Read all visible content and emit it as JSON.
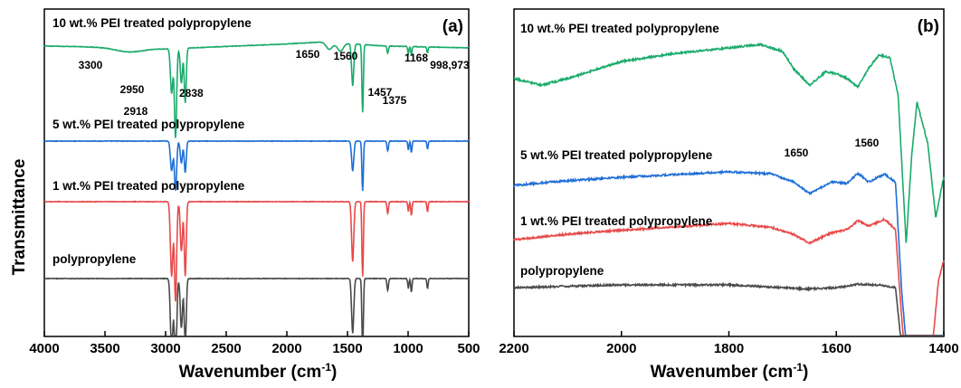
{
  "y_axis_label": "Transmittance",
  "chart_data": [
    {
      "type": "line",
      "panel_label": "(a)",
      "xlabel": "Wavenumber (cm",
      "xlabel_sup": "-1",
      "xlabel_end": ")",
      "ylabel": "Transmittance",
      "xlim": [
        4000,
        500
      ],
      "x_reversed": true,
      "xticks": [
        4000,
        3500,
        3000,
        2500,
        2000,
        1500,
        1000,
        500
      ],
      "xtick_labels": [
        "4000",
        "3500",
        "3000",
        "2500",
        "2000",
        "1500",
        "1000",
        "500"
      ],
      "y_ticks_shown": false,
      "series": [
        {
          "name": "10 wt.% PEI treated polypropylene",
          "color": "#1aab6a",
          "offset": 3,
          "baseline": [
            [
              4000,
              0.02
            ],
            [
              3300,
              0.0
            ],
            [
              3000,
              -0.01
            ],
            [
              2000,
              0.04
            ],
            [
              1700,
              0.06
            ],
            [
              1200,
              0.02
            ],
            [
              500,
              0.0
            ]
          ],
          "peaks": [
            {
              "x": 3300,
              "depth": 0.04,
              "width": 110
            },
            {
              "x": 2950,
              "depth": 0.45,
              "width": 10
            },
            {
              "x": 2918,
              "depth": 0.9,
              "width": 9
            },
            {
              "x": 2870,
              "depth": 0.35,
              "width": 9
            },
            {
              "x": 2838,
              "depth": 0.55,
              "width": 8
            },
            {
              "x": 1650,
              "depth": 0.07,
              "width": 25
            },
            {
              "x": 1560,
              "depth": 0.08,
              "width": 25
            },
            {
              "x": 1457,
              "depth": 0.42,
              "width": 9
            },
            {
              "x": 1375,
              "depth": 0.68,
              "width": 6
            },
            {
              "x": 1168,
              "depth": 0.07,
              "width": 6
            },
            {
              "x": 998,
              "depth": 0.07,
              "width": 5
            },
            {
              "x": 973,
              "depth": 0.08,
              "width": 5
            },
            {
              "x": 840,
              "depth": 0.06,
              "width": 5
            }
          ]
        },
        {
          "name": "5 wt.% PEI treated polypropylene",
          "color": "#1f6fd6",
          "offset": 2,
          "baseline": [
            [
              4000,
              0.0
            ],
            [
              500,
              0.0
            ]
          ],
          "peaks": [
            {
              "x": 2950,
              "depth": 0.3,
              "width": 10
            },
            {
              "x": 2918,
              "depth": 0.5,
              "width": 9
            },
            {
              "x": 2870,
              "depth": 0.22,
              "width": 9
            },
            {
              "x": 2838,
              "depth": 0.32,
              "width": 8
            },
            {
              "x": 1457,
              "depth": 0.3,
              "width": 9
            },
            {
              "x": 1375,
              "depth": 0.5,
              "width": 6
            },
            {
              "x": 1168,
              "depth": 0.1,
              "width": 6
            },
            {
              "x": 998,
              "depth": 0.09,
              "width": 5
            },
            {
              "x": 973,
              "depth": 0.12,
              "width": 5
            },
            {
              "x": 840,
              "depth": 0.08,
              "width": 5
            }
          ]
        },
        {
          "name": "1 wt.% PEI treated polypropylene",
          "color": "#e84a4a",
          "offset": 1,
          "baseline": [
            [
              4000,
              0.0
            ],
            [
              500,
              0.0
            ]
          ],
          "peaks": [
            {
              "x": 2950,
              "depth": 0.75,
              "width": 10
            },
            {
              "x": 2918,
              "depth": 1.0,
              "width": 9
            },
            {
              "x": 2870,
              "depth": 0.5,
              "width": 9
            },
            {
              "x": 2838,
              "depth": 0.75,
              "width": 8
            },
            {
              "x": 1457,
              "depth": 0.6,
              "width": 9
            },
            {
              "x": 1375,
              "depth": 0.75,
              "width": 6
            },
            {
              "x": 1168,
              "depth": 0.12,
              "width": 6
            },
            {
              "x": 998,
              "depth": 0.1,
              "width": 5
            },
            {
              "x": 973,
              "depth": 0.14,
              "width": 5
            },
            {
              "x": 840,
              "depth": 0.1,
              "width": 5
            }
          ]
        },
        {
          "name": "polypropylene",
          "color": "#4a4a4a",
          "offset": 0,
          "baseline": [
            [
              4000,
              0.0
            ],
            [
              500,
              0.0
            ]
          ],
          "peaks": [
            {
              "x": 2950,
              "depth": 0.75,
              "width": 10
            },
            {
              "x": 2918,
              "depth": 1.0,
              "width": 9
            },
            {
              "x": 2870,
              "depth": 0.5,
              "width": 9
            },
            {
              "x": 2838,
              "depth": 0.7,
              "width": 8
            },
            {
              "x": 1457,
              "depth": 0.55,
              "width": 9
            },
            {
              "x": 1375,
              "depth": 0.75,
              "width": 6
            },
            {
              "x": 1168,
              "depth": 0.12,
              "width": 6
            },
            {
              "x": 998,
              "depth": 0.1,
              "width": 5
            },
            {
              "x": 973,
              "depth": 0.14,
              "width": 5
            },
            {
              "x": 840,
              "depth": 0.1,
              "width": 5
            }
          ]
        }
      ],
      "annotations": [
        {
          "text": "3300",
          "x": 3300
        },
        {
          "text": "2950",
          "x": 2950
        },
        {
          "text": "2918",
          "x": 2918
        },
        {
          "text": "2838",
          "x": 2838
        },
        {
          "text": "1650",
          "x": 1650
        },
        {
          "text": "1560",
          "x": 1560
        },
        {
          "text": "1457",
          "x": 1457
        },
        {
          "text": "1375",
          "x": 1375
        },
        {
          "text": "1168",
          "x": 1168
        },
        {
          "text": "998,973",
          "x": 985
        }
      ]
    },
    {
      "type": "line",
      "panel_label": "(b)",
      "xlabel": "Wavenumber (cm",
      "xlabel_sup": "-1",
      "xlabel_end": ")",
      "xlim": [
        2200,
        1400
      ],
      "x_reversed": true,
      "xticks": [
        2200,
        2000,
        1800,
        1600,
        1400
      ],
      "xtick_labels": [
        "2200",
        "2000",
        "1800",
        "1600",
        "1400"
      ],
      "y_ticks_shown": false,
      "series": [
        {
          "name": "10 wt.% PEI treated polypropylene",
          "color": "#1aab6a",
          "offset": 3,
          "baseline": [
            [
              2200,
              0.55
            ],
            [
              2150,
              0.45
            ],
            [
              2100,
              0.55
            ],
            [
              2000,
              0.8
            ],
            [
              1900,
              0.92
            ],
            [
              1800,
              1.0
            ],
            [
              1740,
              1.05
            ],
            [
              1700,
              0.95
            ],
            [
              1680,
              0.7
            ],
            [
              1650,
              0.45
            ],
            [
              1620,
              0.65
            ],
            [
              1600,
              0.62
            ],
            [
              1580,
              0.55
            ],
            [
              1560,
              0.42
            ],
            [
              1540,
              0.7
            ],
            [
              1520,
              0.9
            ],
            [
              1500,
              0.85
            ],
            [
              1485,
              0.3
            ],
            [
              1470,
              -1.9
            ],
            [
              1460,
              -0.6
            ],
            [
              1450,
              0.2
            ],
            [
              1430,
              -0.4
            ],
            [
              1415,
              -1.5
            ],
            [
              1400,
              -0.9
            ]
          ]
        },
        {
          "name": "5 wt.% PEI treated polypropylene",
          "color": "#1f6fd6",
          "offset": 2,
          "baseline": [
            [
              2200,
              0.0
            ],
            [
              2100,
              0.07
            ],
            [
              2000,
              0.12
            ],
            [
              1800,
              0.2
            ],
            [
              1720,
              0.17
            ],
            [
              1680,
              0.05
            ],
            [
              1650,
              -0.12
            ],
            [
              1610,
              0.05
            ],
            [
              1580,
              0.03
            ],
            [
              1560,
              0.18
            ],
            [
              1540,
              0.05
            ],
            [
              1510,
              0.17
            ],
            [
              1490,
              0.05
            ],
            [
              1478,
              -1.6
            ],
            [
              1465,
              -2.8
            ],
            [
              1450,
              -2.8
            ],
            [
              1442,
              -2.8
            ],
            [
              1430,
              -2.8
            ],
            [
              1415,
              -2.8
            ],
            [
              1400,
              -2.8
            ]
          ]
        },
        {
          "name": "1 wt.% PEI treated polypropylene",
          "color": "#e84a4a",
          "offset": 1,
          "baseline": [
            [
              2200,
              0.0
            ],
            [
              2100,
              0.08
            ],
            [
              2000,
              0.14
            ],
            [
              1800,
              0.24
            ],
            [
              1720,
              0.18
            ],
            [
              1680,
              0.08
            ],
            [
              1650,
              -0.05
            ],
            [
              1610,
              0.1
            ],
            [
              1580,
              0.15
            ],
            [
              1560,
              0.28
            ],
            [
              1540,
              0.2
            ],
            [
              1510,
              0.3
            ],
            [
              1490,
              0.15
            ],
            [
              1478,
              -1.2
            ],
            [
              1470,
              -1.9
            ],
            [
              1460,
              -1.9
            ],
            [
              1440,
              -1.9
            ],
            [
              1425,
              -1.9
            ],
            [
              1410,
              -0.6
            ],
            [
              1400,
              -0.3
            ]
          ]
        },
        {
          "name": "polypropylene",
          "color": "#4a4a4a",
          "offset": 0,
          "baseline": [
            [
              2200,
              0.0
            ],
            [
              2100,
              0.02
            ],
            [
              2000,
              0.04
            ],
            [
              1800,
              0.04
            ],
            [
              1700,
              0.0
            ],
            [
              1650,
              -0.02
            ],
            [
              1600,
              0.0
            ],
            [
              1560,
              0.05
            ],
            [
              1520,
              0.04
            ],
            [
              1490,
              0.0
            ],
            [
              1478,
              -0.9
            ],
            [
              1470,
              -0.9
            ],
            [
              1460,
              -0.9
            ],
            [
              1440,
              -0.9
            ],
            [
              1420,
              -0.9
            ],
            [
              1400,
              -0.9
            ]
          ]
        }
      ],
      "annotations": [
        {
          "text": "1650",
          "x": 1650
        },
        {
          "text": "1560",
          "x": 1560
        }
      ]
    }
  ]
}
